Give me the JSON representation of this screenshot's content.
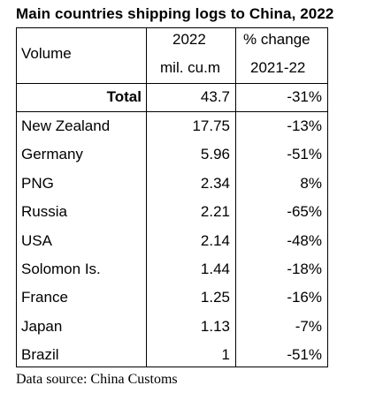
{
  "chart_data": {
    "type": "table",
    "title": "Main countries shipping logs to China, 2022",
    "header": {
      "col1": "Volume",
      "col2_line1": "2022",
      "col2_line2": "mil. cu.m",
      "col3_line1": "% change",
      "col3_line2": "2021-22"
    },
    "total": {
      "label": "Total",
      "volume": "43.7",
      "change": "-31%"
    },
    "rows": [
      {
        "country": "New Zealand",
        "volume": "17.75",
        "change": "-13%"
      },
      {
        "country": "Germany",
        "volume": "5.96",
        "change": "-51%"
      },
      {
        "country": "PNG",
        "volume": "2.34",
        "change": "8%"
      },
      {
        "country": "Russia",
        "volume": "2.21",
        "change": "-65%"
      },
      {
        "country": "USA",
        "volume": "2.14",
        "change": "-48%"
      },
      {
        "country": "Solomon Is.",
        "volume": "1.44",
        "change": "-18%"
      },
      {
        "country": "France",
        "volume": "1.25",
        "change": "-16%"
      },
      {
        "country": "Japan",
        "volume": "1.13",
        "change": "-7%"
      },
      {
        "country": "Brazil",
        "volume": "1",
        "change": "-51%"
      }
    ]
  },
  "footer": {
    "source": "Data source: China Customs"
  }
}
